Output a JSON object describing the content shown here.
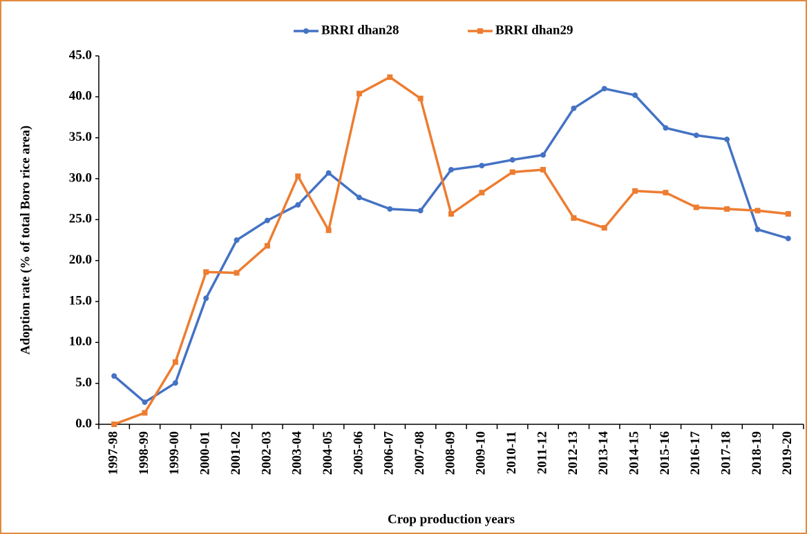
{
  "chart_data": {
    "type": "line",
    "x_label": "Crop production years",
    "y_label": "Adoption rate (% of total Boro rice area)",
    "categories": [
      "1997-98",
      "1998-99",
      "1999-00",
      "2000-01",
      "2001-02",
      "2002-03",
      "2003-04",
      "2004-05",
      "2005-06",
      "2006-07",
      "2007-08",
      "2008-09",
      "2009-10",
      "2010-11",
      "2011-12",
      "2012-13",
      "2013-14",
      "2014-15",
      "2015-16",
      "2016-17",
      "2017-18",
      "2018-19",
      "2019-20"
    ],
    "series": [
      {
        "name": "BRRI dhan28",
        "color": "#4472c4",
        "marker": "circle",
        "values": [
          5.9,
          2.7,
          5.05,
          15.4,
          22.5,
          24.9,
          26.8,
          30.7,
          27.7,
          26.3,
          26.1,
          31.1,
          31.6,
          32.3,
          32.9,
          38.6,
          41.0,
          40.2,
          36.2,
          35.3,
          34.8,
          23.8,
          22.7
        ]
      },
      {
        "name": "BRRI dhan29",
        "color": "#ed7d31",
        "marker": "square",
        "values": [
          0.0,
          1.4,
          7.6,
          18.6,
          18.5,
          21.8,
          30.3,
          23.7,
          40.4,
          42.4,
          39.8,
          25.7,
          28.3,
          30.8,
          31.1,
          25.2,
          24.0,
          28.5,
          28.3,
          26.5,
          26.3,
          26.1,
          25.7
        ]
      }
    ],
    "ylim": [
      0,
      45
    ],
    "yticks": [
      {
        "value": 0,
        "label": "0.0"
      },
      {
        "value": 5,
        "label": "5.0"
      },
      {
        "value": 10,
        "label": "10.0"
      },
      {
        "value": 15,
        "label": "15.0"
      },
      {
        "value": 20,
        "label": "20.0"
      },
      {
        "value": 25,
        "label": "25.0"
      },
      {
        "value": 30,
        "label": "30.0"
      },
      {
        "value": 35,
        "label": "35.0"
      },
      {
        "value": 40,
        "label": "40.0"
      },
      {
        "value": 45,
        "label": "45.0"
      }
    ],
    "grid": false,
    "legend": "top"
  }
}
